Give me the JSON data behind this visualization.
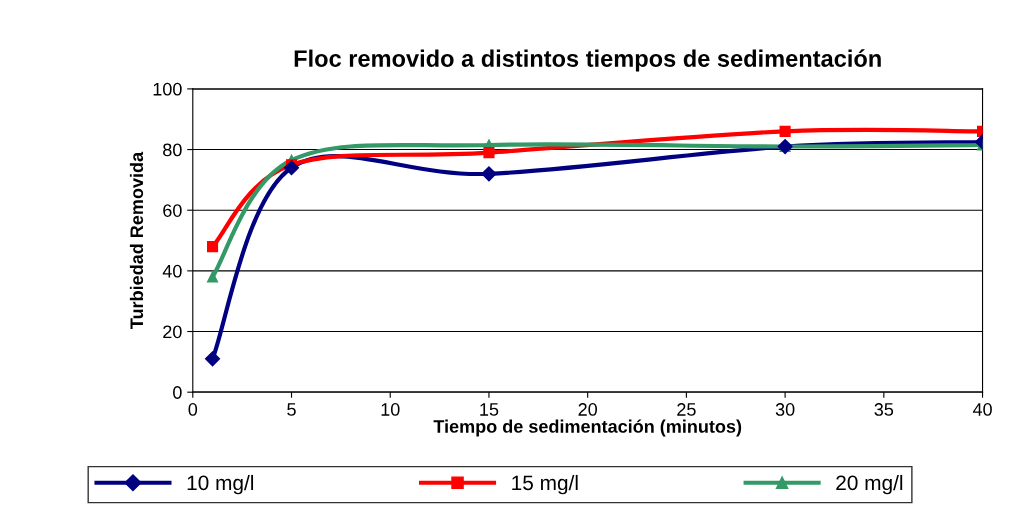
{
  "chart_data": {
    "type": "line",
    "title": "Floc removido a distintos tiempos de sedimentación",
    "xlabel": "Tiempo de sedimentación (minutos)",
    "ylabel": "Turbiedad Removida",
    "x": [
      1,
      5,
      15,
      30,
      40
    ],
    "series": [
      {
        "name": "10 mg/l",
        "color": "#000080",
        "marker": "diamond",
        "values": [
          11,
          74,
          72,
          81,
          82.5
        ]
      },
      {
        "name": "15 mg/l",
        "color": "#ff0000",
        "marker": "square",
        "values": [
          48,
          75,
          79,
          86,
          86
        ]
      },
      {
        "name": "20 mg/l",
        "color": "#339966",
        "marker": "triangle",
        "values": [
          38,
          76.5,
          81.5,
          81,
          81.5
        ]
      }
    ],
    "xlim": [
      0,
      40
    ],
    "xticks": [
      0,
      5,
      10,
      15,
      20,
      25,
      30,
      35,
      40
    ],
    "ylim": [
      0,
      100
    ],
    "yticks": [
      0,
      20,
      40,
      60,
      80,
      100
    ],
    "grid": "y",
    "legend": "bottom",
    "line_style": "solid"
  }
}
